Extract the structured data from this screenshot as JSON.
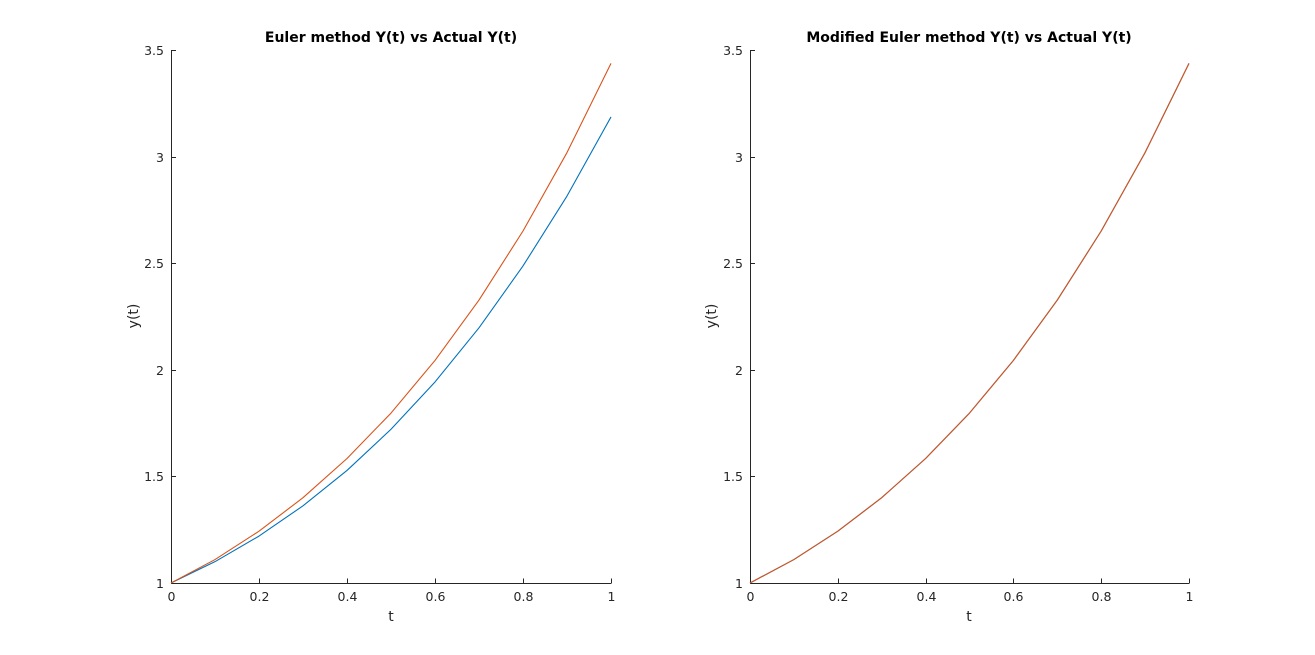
{
  "chart_data": [
    {
      "type": "line",
      "title": "Euler method Y(t) vs Actual Y(t)",
      "xlabel": "t",
      "ylabel": "y(t)",
      "xlim": [
        0,
        1
      ],
      "ylim": [
        1,
        3.5
      ],
      "xticks": [
        0,
        0.2,
        0.4,
        0.6,
        0.8,
        1
      ],
      "xtick_labels": [
        "0",
        "0.2",
        "0.4",
        "0.6",
        "0.8",
        "1"
      ],
      "yticks": [
        1,
        1.5,
        2,
        2.5,
        3,
        3.5
      ],
      "ytick_labels": [
        "1",
        "1.5",
        "2",
        "2.5",
        "3",
        "3.5"
      ],
      "grid": false,
      "series": [
        {
          "color": "#0072bd",
          "x": [
            0,
            0.1,
            0.2,
            0.3,
            0.4,
            0.5,
            0.6,
            0.7,
            0.8,
            0.9,
            1.0
          ],
          "y": [
            1.0,
            1.1,
            1.22,
            1.362,
            1.528,
            1.721,
            1.943,
            2.197,
            2.487,
            2.815,
            3.186
          ]
        },
        {
          "color": "#d95319",
          "x": [
            0,
            0.1,
            0.2,
            0.3,
            0.4,
            0.5,
            0.6,
            0.7,
            0.8,
            0.9,
            1.0
          ],
          "y": [
            1.0,
            1.11,
            1.243,
            1.4,
            1.584,
            1.797,
            2.044,
            2.327,
            2.651,
            3.019,
            3.437
          ]
        }
      ]
    },
    {
      "type": "line",
      "title": "Modified Euler method Y(t) vs Actual Y(t)",
      "xlabel": "t",
      "ylabel": "y(t)",
      "xlim": [
        0,
        1
      ],
      "ylim": [
        1,
        3.5
      ],
      "xticks": [
        0,
        0.2,
        0.4,
        0.6,
        0.8,
        1
      ],
      "xtick_labels": [
        "0",
        "0.2",
        "0.4",
        "0.6",
        "0.8",
        "1"
      ],
      "yticks": [
        1,
        1.5,
        2,
        2.5,
        3,
        3.5
      ],
      "ytick_labels": [
        "1",
        "1.5",
        "2",
        "2.5",
        "3",
        "3.5"
      ],
      "grid": false,
      "series": [
        {
          "color": "#0072bd",
          "x": [
            0,
            0.1,
            0.2,
            0.3,
            0.4,
            0.5,
            0.6,
            0.7,
            0.8,
            0.9,
            1.0
          ],
          "y": [
            1.0,
            1.11,
            1.243,
            1.4,
            1.584,
            1.797,
            2.044,
            2.327,
            2.651,
            3.019,
            3.437
          ]
        },
        {
          "color": "#d95319",
          "x": [
            0,
            0.1,
            0.2,
            0.3,
            0.4,
            0.5,
            0.6,
            0.7,
            0.8,
            0.9,
            1.0
          ],
          "y": [
            1.0,
            1.11,
            1.243,
            1.4,
            1.584,
            1.797,
            2.044,
            2.327,
            2.651,
            3.019,
            3.437
          ]
        }
      ]
    }
  ]
}
